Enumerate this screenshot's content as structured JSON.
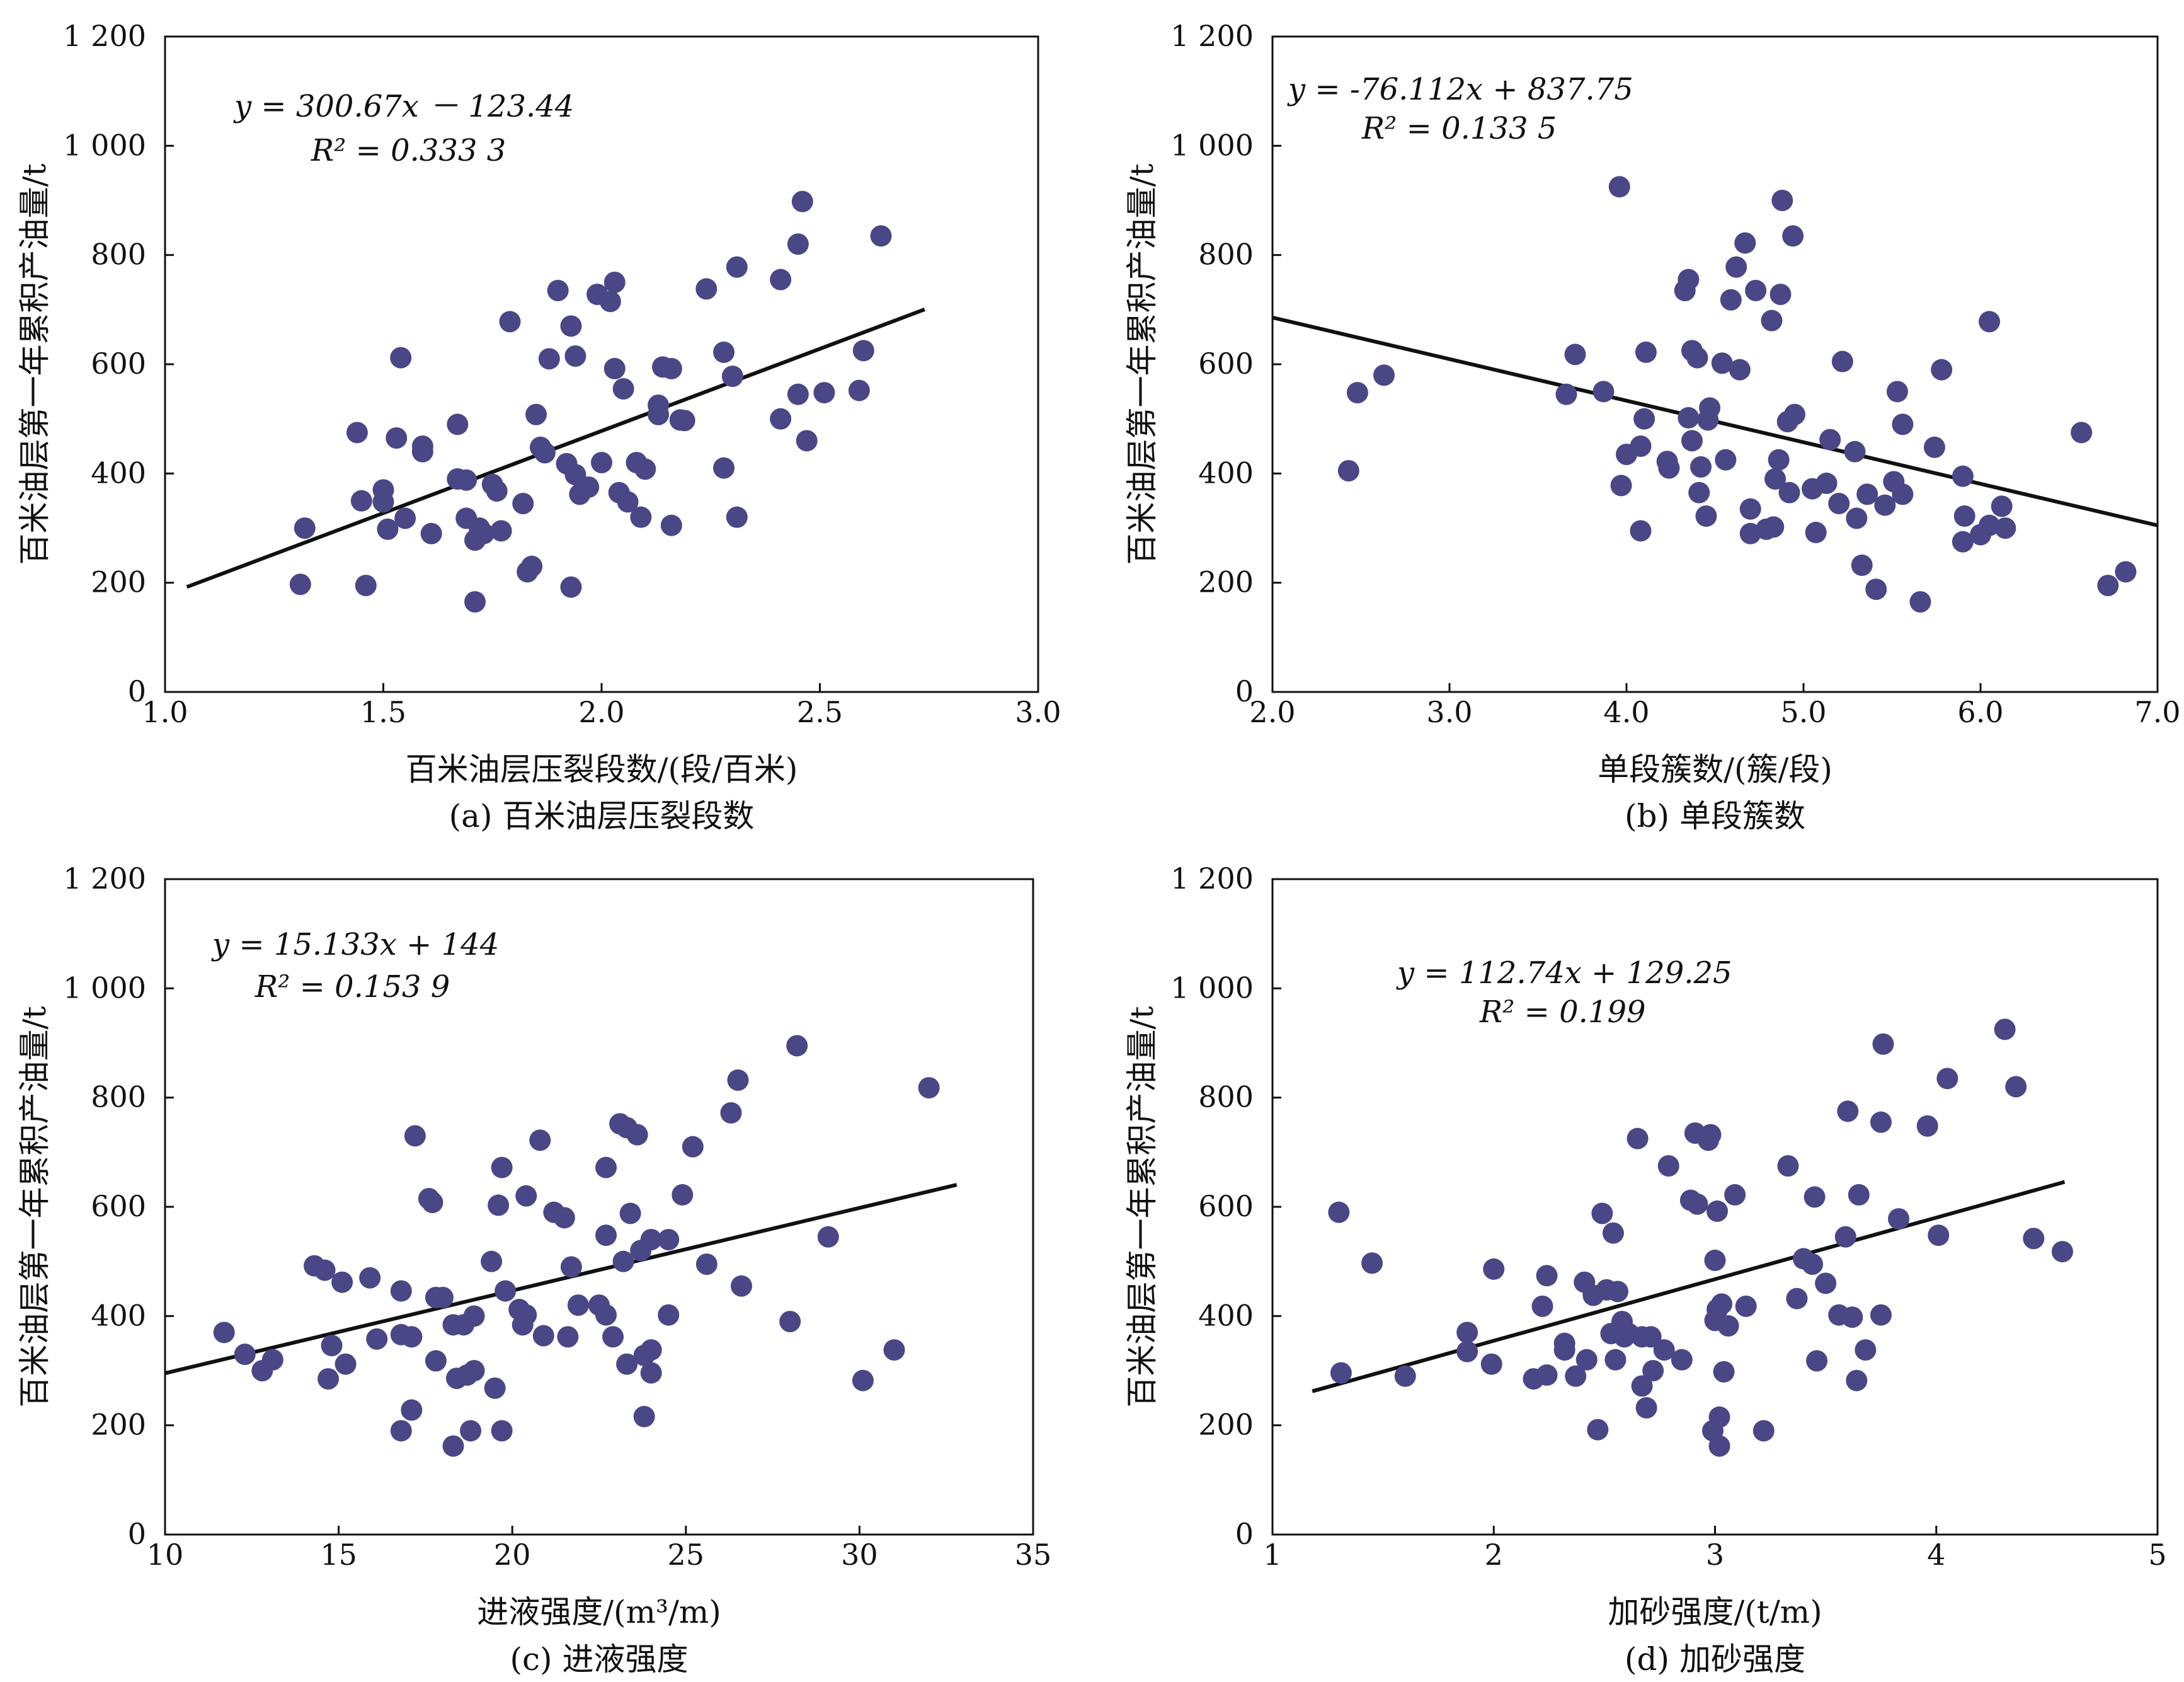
{
  "chart_data": [
    {
      "type": "scatter",
      "caption": "(a) 百米油层压裂段数",
      "xlabel": "百米油层压裂段数/(段/百米)",
      "ylabel": "百米油层第一年累积产油量/t",
      "xlim": [
        1.0,
        3.0
      ],
      "ylim": [
        0,
        1200
      ],
      "xticks": [
        "1.0",
        "1.5",
        "2.0",
        "2.5",
        "3.0"
      ],
      "yticks": [
        "0",
        "200",
        "400",
        "600",
        "800",
        "1 000",
        "1 200"
      ],
      "equation": "y = 300.67x － 123.44",
      "r2": "R² = 0.333 3",
      "trend": {
        "slope": 300.67,
        "intercept": -123.44,
        "x_range": [
          1.05,
          2.74
        ]
      },
      "marker_color": "#4a4787",
      "points": [
        [
          1.31,
          197
        ],
        [
          1.32,
          300
        ],
        [
          1.44,
          475
        ],
        [
          1.45,
          350
        ],
        [
          1.46,
          195
        ],
        [
          1.53,
          465
        ],
        [
          1.54,
          612
        ],
        [
          1.5,
          370
        ],
        [
          1.5,
          348
        ],
        [
          1.51,
          298
        ],
        [
          1.55,
          318
        ],
        [
          1.59,
          450
        ],
        [
          1.59,
          440
        ],
        [
          1.61,
          290
        ],
        [
          1.67,
          390
        ],
        [
          1.67,
          490
        ],
        [
          1.69,
          388
        ],
        [
          1.69,
          318
        ],
        [
          1.71,
          278
        ],
        [
          1.72,
          300
        ],
        [
          1.73,
          290
        ],
        [
          1.75,
          380
        ],
        [
          1.76,
          368
        ],
        [
          1.77,
          295
        ],
        [
          1.79,
          678
        ],
        [
          1.82,
          345
        ],
        [
          1.84,
          230
        ],
        [
          1.83,
          220
        ],
        [
          1.85,
          508
        ],
        [
          1.86,
          448
        ],
        [
          1.88,
          610
        ],
        [
          1.87,
          438
        ],
        [
          1.9,
          735
        ],
        [
          1.92,
          418
        ],
        [
          1.93,
          670
        ],
        [
          1.93,
          192
        ],
        [
          1.94,
          615
        ],
        [
          1.94,
          398
        ],
        [
          1.95,
          362
        ],
        [
          1.97,
          375
        ],
        [
          1.99,
          728
        ],
        [
          2.0,
          420
        ],
        [
          2.02,
          715
        ],
        [
          2.03,
          750
        ],
        [
          2.03,
          592
        ],
        [
          2.04,
          365
        ],
        [
          2.05,
          555
        ],
        [
          2.06,
          348
        ],
        [
          2.08,
          420
        ],
        [
          2.09,
          320
        ],
        [
          2.1,
          408
        ],
        [
          2.13,
          525
        ],
        [
          2.13,
          508
        ],
        [
          2.14,
          595
        ],
        [
          2.16,
          592
        ],
        [
          2.16,
          305
        ],
        [
          2.18,
          498
        ],
        [
          2.19,
          497
        ],
        [
          2.24,
          738
        ],
        [
          2.28,
          622
        ],
        [
          2.28,
          410
        ],
        [
          2.3,
          578
        ],
        [
          2.31,
          778
        ],
        [
          2.31,
          320
        ],
        [
          2.41,
          755
        ],
        [
          2.41,
          500
        ],
        [
          2.45,
          820
        ],
        [
          2.45,
          545
        ],
        [
          2.46,
          898
        ],
        [
          2.47,
          460
        ],
        [
          2.51,
          548
        ],
        [
          2.59,
          552
        ],
        [
          2.6,
          625
        ],
        [
          2.64,
          835
        ],
        [
          1.71,
          165
        ]
      ]
    },
    {
      "type": "scatter",
      "caption": "(b) 单段簇数",
      "xlabel": "单段簇数/(簇/段)",
      "ylabel": "百米油层第一年累积产油量/t",
      "xlim": [
        2.0,
        7.0
      ],
      "ylim": [
        0,
        1200
      ],
      "xticks": [
        "2.0",
        "3.0",
        "4.0",
        "5.0",
        "6.0",
        "7.0"
      ],
      "yticks": [
        "0",
        "200",
        "400",
        "600",
        "800",
        "1 000",
        "1 200"
      ],
      "equation": "y = -76.112x + 837.75",
      "r2": "R² = 0.133 5",
      "trend": {
        "slope": -76.112,
        "intercept": 837.75,
        "x_range": [
          2.0,
          7.0
        ]
      },
      "marker_color": "#4a4787",
      "points": [
        [
          2.43,
          405
        ],
        [
          2.48,
          548
        ],
        [
          2.63,
          580
        ],
        [
          3.66,
          545
        ],
        [
          3.71,
          618
        ],
        [
          3.87,
          550
        ],
        [
          3.96,
          925
        ],
        [
          3.97,
          378
        ],
        [
          4.0,
          435
        ],
        [
          4.08,
          295
        ],
        [
          4.08,
          450
        ],
        [
          4.1,
          500
        ],
        [
          4.11,
          622
        ],
        [
          4.23,
          422
        ],
        [
          4.24,
          410
        ],
        [
          4.33,
          735
        ],
        [
          4.35,
          502
        ],
        [
          4.35,
          755
        ],
        [
          4.37,
          625
        ],
        [
          4.37,
          460
        ],
        [
          4.4,
          612
        ],
        [
          4.41,
          365
        ],
        [
          4.42,
          412
        ],
        [
          4.45,
          322
        ],
        [
          4.46,
          498
        ],
        [
          4.47,
          520
        ],
        [
          4.54,
          602
        ],
        [
          4.56,
          425
        ],
        [
          4.59,
          718
        ],
        [
          4.62,
          778
        ],
        [
          4.64,
          590
        ],
        [
          4.67,
          822
        ],
        [
          4.7,
          335
        ],
        [
          4.7,
          290
        ],
        [
          4.73,
          735
        ],
        [
          4.79,
          298
        ],
        [
          4.82,
          680
        ],
        [
          4.83,
          302
        ],
        [
          4.84,
          390
        ],
        [
          4.86,
          425
        ],
        [
          4.87,
          728
        ],
        [
          4.88,
          900
        ],
        [
          4.91,
          495
        ],
        [
          4.92,
          365
        ],
        [
          4.94,
          835
        ],
        [
          4.95,
          508
        ],
        [
          5.05,
          372
        ],
        [
          5.07,
          292
        ],
        [
          5.13,
          382
        ],
        [
          5.15,
          462
        ],
        [
          5.2,
          345
        ],
        [
          5.22,
          605
        ],
        [
          5.29,
          440
        ],
        [
          5.3,
          318
        ],
        [
          5.33,
          232
        ],
        [
          5.36,
          362
        ],
        [
          5.41,
          188
        ],
        [
          5.46,
          342
        ],
        [
          5.51,
          385
        ],
        [
          5.53,
          550
        ],
        [
          5.56,
          490
        ],
        [
          5.56,
          362
        ],
        [
          5.66,
          165
        ],
        [
          5.74,
          448
        ],
        [
          5.78,
          590
        ],
        [
          5.9,
          395
        ],
        [
          5.9,
          275
        ],
        [
          5.91,
          322
        ],
        [
          6.0,
          288
        ],
        [
          6.05,
          678
        ],
        [
          6.05,
          305
        ],
        [
          6.12,
          340
        ],
        [
          6.14,
          300
        ],
        [
          6.57,
          475
        ],
        [
          6.72,
          195
        ],
        [
          6.82,
          220
        ]
      ]
    },
    {
      "type": "scatter",
      "caption": "(c) 进液强度",
      "xlabel": "进液强度/(m³/m)",
      "ylabel": "百米油层第一年累积产油量/t",
      "xlim": [
        10,
        35
      ],
      "ylim": [
        0,
        1200
      ],
      "xticks": [
        "10",
        "15",
        "20",
        "25",
        "30",
        "35"
      ],
      "yticks": [
        "0",
        "200",
        "400",
        "600",
        "800",
        "1 000",
        "1 200"
      ],
      "equation": "y = 15.133x + 144",
      "r2": "R² = 0.153 9",
      "trend": {
        "slope": 15.133,
        "intercept": 144,
        "x_range": [
          10,
          32.8
        ]
      },
      "marker_color": "#4a4787",
      "points": [
        [
          11.7,
          370
        ],
        [
          12.3,
          330
        ],
        [
          12.8,
          300
        ],
        [
          13.1,
          320
        ],
        [
          14.3,
          492
        ],
        [
          14.6,
          484
        ],
        [
          14.8,
          346
        ],
        [
          14.7,
          285
        ],
        [
          15.1,
          462
        ],
        [
          15.2,
          312
        ],
        [
          15.9,
          470
        ],
        [
          16.1,
          358
        ],
        [
          16.8,
          446
        ],
        [
          16.8,
          366
        ],
        [
          16.8,
          190
        ],
        [
          17.1,
          362
        ],
        [
          17.1,
          228
        ],
        [
          17.2,
          730
        ],
        [
          17.6,
          615
        ],
        [
          17.7,
          608
        ],
        [
          17.8,
          434
        ],
        [
          17.8,
          318
        ],
        [
          18.0,
          434
        ],
        [
          18.3,
          384
        ],
        [
          18.4,
          286
        ],
        [
          18.3,
          162
        ],
        [
          18.6,
          384
        ],
        [
          18.7,
          292
        ],
        [
          18.8,
          190
        ],
        [
          18.9,
          400
        ],
        [
          18.9,
          300
        ],
        [
          19.4,
          500
        ],
        [
          19.5,
          268
        ],
        [
          19.6,
          603
        ],
        [
          19.7,
          190
        ],
        [
          19.7,
          672
        ],
        [
          19.8,
          446
        ],
        [
          20.2,
          412
        ],
        [
          20.3,
          384
        ],
        [
          20.4,
          620
        ],
        [
          20.4,
          402
        ],
        [
          20.8,
          722
        ],
        [
          20.9,
          364
        ],
        [
          21.2,
          590
        ],
        [
          21.5,
          580
        ],
        [
          21.6,
          362
        ],
        [
          21.7,
          490
        ],
        [
          21.9,
          420
        ],
        [
          22.5,
          420
        ],
        [
          22.7,
          672
        ],
        [
          22.7,
          548
        ],
        [
          22.7,
          402
        ],
        [
          22.9,
          362
        ],
        [
          23.1,
          752
        ],
        [
          23.2,
          500
        ],
        [
          23.3,
          745
        ],
        [
          23.4,
          588
        ],
        [
          23.3,
          312
        ],
        [
          23.6,
          732
        ],
        [
          23.7,
          520
        ],
        [
          23.8,
          216
        ],
        [
          23.8,
          328
        ],
        [
          24.0,
          540
        ],
        [
          24.0,
          296
        ],
        [
          24.0,
          338
        ],
        [
          24.5,
          540
        ],
        [
          24.5,
          402
        ],
        [
          24.9,
          622
        ],
        [
          25.2,
          710
        ],
        [
          25.6,
          495
        ],
        [
          26.3,
          772
        ],
        [
          26.5,
          832
        ],
        [
          26.6,
          455
        ],
        [
          28.0,
          390
        ],
        [
          28.2,
          895
        ],
        [
          29.1,
          545
        ],
        [
          30.1,
          282
        ],
        [
          31.0,
          338
        ],
        [
          32.0,
          818
        ]
      ]
    },
    {
      "type": "scatter",
      "caption": "(d) 加砂强度",
      "xlabel": "加砂强度/(t/m)",
      "ylabel": "百米油层第一年累积产油量/t",
      "xlim": [
        1,
        5
      ],
      "ylim": [
        0,
        1200
      ],
      "xticks": [
        "1",
        "2",
        "3",
        "4",
        "5"
      ],
      "yticks": [
        "0",
        "200",
        "400",
        "600",
        "800",
        "1 000",
        "1 200"
      ],
      "equation": "y = 112.74x + 129.25",
      "r2": "R² = 0.199",
      "trend": {
        "slope": 112.74,
        "intercept": 129.25,
        "x_range": [
          1.18,
          4.58
        ]
      },
      "marker_color": "#4a4787",
      "points": [
        [
          1.3,
          590
        ],
        [
          1.31,
          296
        ],
        [
          1.45,
          497
        ],
        [
          1.6,
          290
        ],
        [
          1.88,
          370
        ],
        [
          1.88,
          335
        ],
        [
          1.99,
          312
        ],
        [
          2.0,
          486
        ],
        [
          2.18,
          285
        ],
        [
          2.22,
          418
        ],
        [
          2.24,
          474
        ],
        [
          2.24,
          292
        ],
        [
          2.32,
          350
        ],
        [
          2.32,
          338
        ],
        [
          2.37,
          290
        ],
        [
          2.41,
          462
        ],
        [
          2.42,
          320
        ],
        [
          2.45,
          438
        ],
        [
          2.47,
          192
        ],
        [
          2.49,
          588
        ],
        [
          2.51,
          448
        ],
        [
          2.53,
          368
        ],
        [
          2.54,
          552
        ],
        [
          2.55,
          320
        ],
        [
          2.56,
          445
        ],
        [
          2.58,
          390
        ],
        [
          2.59,
          362
        ],
        [
          2.61,
          368
        ],
        [
          2.65,
          725
        ],
        [
          2.67,
          272
        ],
        [
          2.67,
          362
        ],
        [
          2.69,
          232
        ],
        [
          2.71,
          362
        ],
        [
          2.72,
          300
        ],
        [
          2.77,
          338
        ],
        [
          2.79,
          675
        ],
        [
          2.85,
          320
        ],
        [
          2.89,
          612
        ],
        [
          2.91,
          735
        ],
        [
          2.92,
          605
        ],
        [
          2.97,
          722
        ],
        [
          2.98,
          732
        ],
        [
          2.99,
          190
        ],
        [
          3.0,
          392
        ],
        [
          3.0,
          502
        ],
        [
          3.01,
          412
        ],
        [
          3.01,
          592
        ],
        [
          3.02,
          162
        ],
        [
          3.02,
          215
        ],
        [
          3.03,
          422
        ],
        [
          3.04,
          298
        ],
        [
          3.06,
          382
        ],
        [
          3.09,
          622
        ],
        [
          3.14,
          418
        ],
        [
          3.22,
          190
        ],
        [
          3.33,
          675
        ],
        [
          3.37,
          432
        ],
        [
          3.4,
          505
        ],
        [
          3.44,
          495
        ],
        [
          3.45,
          618
        ],
        [
          3.46,
          318
        ],
        [
          3.5,
          460
        ],
        [
          3.56,
          402
        ],
        [
          3.59,
          545
        ],
        [
          3.6,
          775
        ],
        [
          3.62,
          398
        ],
        [
          3.64,
          282
        ],
        [
          3.65,
          622
        ],
        [
          3.68,
          338
        ],
        [
          3.75,
          402
        ],
        [
          3.75,
          755
        ],
        [
          3.76,
          898
        ],
        [
          3.83,
          578
        ],
        [
          3.96,
          748
        ],
        [
          4.01,
          548
        ],
        [
          4.05,
          835
        ],
        [
          4.31,
          925
        ],
        [
          4.36,
          820
        ],
        [
          4.44,
          542
        ],
        [
          4.57,
          518
        ]
      ]
    }
  ]
}
